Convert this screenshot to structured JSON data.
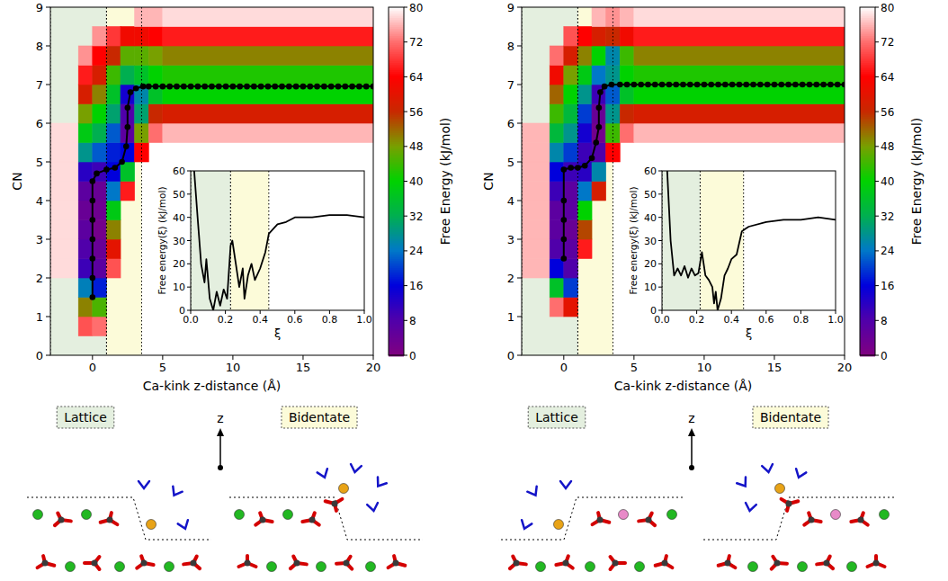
{
  "chart_data": [
    {
      "type": "heatmap",
      "xlabel": "Ca-kink z-distance (Å)",
      "ylabel": "CN",
      "xlim": [
        -3,
        20
      ],
      "xticks": [
        0,
        5,
        10,
        15,
        20
      ],
      "ylim": [
        0,
        9
      ],
      "yticks": [
        0,
        1,
        2,
        3,
        4,
        5,
        6,
        7,
        8,
        9
      ],
      "x_edges": [
        -3,
        -1,
        0,
        1,
        2,
        3,
        4,
        5,
        20
      ],
      "y_edges": [
        0,
        0.5,
        1,
        1.5,
        2,
        2.5,
        3,
        3.5,
        4,
        4.5,
        5,
        5.5,
        6,
        6.5,
        7,
        7.5,
        8,
        8.5,
        9
      ],
      "cells": [
        [
          null,
          null,
          null,
          null,
          null,
          null,
          null,
          null
        ],
        [
          null,
          70,
          72,
          null,
          null,
          null,
          null,
          null
        ],
        [
          null,
          50,
          45,
          null,
          null,
          null,
          null,
          null
        ],
        [
          null,
          25,
          18,
          null,
          null,
          null,
          null,
          null
        ],
        [
          78,
          10,
          6,
          70,
          null,
          null,
          null,
          null
        ],
        [
          78,
          8,
          4,
          60,
          null,
          null,
          null,
          null
        ],
        [
          78,
          6,
          2,
          50,
          null,
          null,
          null,
          null
        ],
        [
          78,
          4,
          3,
          38,
          null,
          null,
          null,
          null
        ],
        [
          78,
          6,
          4,
          24,
          66,
          null,
          null,
          null
        ],
        [
          78,
          12,
          10,
          16,
          36,
          null,
          null,
          null
        ],
        [
          78,
          28,
          22,
          18,
          16,
          64,
          null,
          null
        ],
        [
          78,
          38,
          32,
          22,
          6,
          48,
          72,
          76
        ],
        [
          null,
          48,
          40,
          30,
          8,
          30,
          56,
          58
        ],
        [
          null,
          58,
          50,
          36,
          14,
          26,
          36,
          40
        ],
        [
          null,
          66,
          58,
          44,
          32,
          36,
          40,
          42
        ],
        [
          null,
          74,
          64,
          56,
          46,
          46,
          48,
          50
        ],
        [
          null,
          null,
          74,
          68,
          62,
          62,
          64,
          66
        ],
        [
          null,
          null,
          null,
          null,
          null,
          76,
          76,
          78
        ]
      ],
      "colorbar": {
        "label": "Free Energy (kJ/mol)",
        "range": [
          0,
          80
        ],
        "ticks": [
          0,
          8,
          16,
          24,
          32,
          40,
          48,
          56,
          64,
          72,
          80
        ]
      },
      "regions": [
        {
          "label": "Lattice",
          "range": [
            -3,
            1
          ],
          "color": "#e4efdf"
        },
        {
          "label": "Bidentate",
          "range": [
            1,
            3.5
          ],
          "color": "#fcfbd9"
        }
      ],
      "path": {
        "x": [
          0,
          0,
          0,
          0,
          0,
          0,
          0,
          0.3,
          1,
          1.6,
          2.1,
          2.4,
          2.5,
          2.5,
          2.7,
          3.1,
          3.6,
          4,
          4.5,
          5,
          5.5,
          6,
          6.5,
          7,
          7.5,
          8,
          8.5,
          9,
          9.5,
          10,
          10.5,
          11,
          11.5,
          12,
          12.5,
          13,
          13.5,
          14,
          14.5,
          15,
          15.5,
          16,
          16.5,
          17,
          17.5,
          18,
          18.5,
          19,
          19.5,
          20
        ],
        "y": [
          1.5,
          2,
          2.5,
          3,
          3.5,
          4,
          4.5,
          4.7,
          4.8,
          4.85,
          5,
          5.4,
          5.9,
          6.4,
          6.8,
          6.9,
          6.95,
          6.95,
          6.95,
          6.95,
          6.95,
          6.95,
          6.95,
          6.95,
          6.95,
          6.95,
          6.95,
          6.95,
          6.95,
          6.95,
          6.95,
          6.95,
          6.95,
          6.95,
          6.95,
          6.95,
          6.95,
          6.95,
          6.95,
          6.95,
          6.95,
          6.95,
          6.95,
          6.95,
          6.95,
          6.95,
          6.95,
          6.95,
          6.95,
          6.95
        ]
      },
      "inset": {
        "type": "line",
        "xlabel": "ξ",
        "ylabel": "Free energy(ξ) (kJ/mol)",
        "xlim": [
          0,
          1
        ],
        "ylim": [
          0,
          60
        ],
        "xticks": [
          {
            "value": 0,
            "label": "0.0"
          },
          {
            "value": 0.2,
            "label": "0.2"
          },
          {
            "value": 0.4,
            "label": "0.4"
          },
          {
            "value": 0.6,
            "label": "0.6"
          },
          {
            "value": 0.8,
            "label": "0.8"
          },
          {
            "value": 1,
            "label": "1.0"
          }
        ],
        "yticks": [
          0,
          10,
          20,
          30,
          40,
          50,
          60
        ],
        "regions": [
          {
            "range": [
              0,
              0.23
            ],
            "color": "#e4efdf"
          },
          {
            "range": [
              0.23,
              0.45
            ],
            "color": "#fcfbd9"
          }
        ],
        "x": [
          0.02,
          0.04,
          0.06,
          0.08,
          0.09,
          0.11,
          0.13,
          0.15,
          0.17,
          0.19,
          0.21,
          0.23,
          0.24,
          0.26,
          0.28,
          0.3,
          0.31,
          0.33,
          0.35,
          0.37,
          0.4,
          0.43,
          0.45,
          0.5,
          0.55,
          0.6,
          0.7,
          0.8,
          0.9,
          1.0
        ],
        "y": [
          60,
          40,
          20,
          12,
          22,
          5,
          0,
          8,
          2,
          9,
          5,
          28,
          30,
          20,
          10,
          18,
          5,
          15,
          20,
          13,
          18,
          25,
          33,
          37,
          38,
          40,
          40,
          41,
          41,
          40
        ]
      },
      "schematic": {
        "arrow_label": "z"
      }
    },
    {
      "type": "heatmap",
      "xlabel": "Ca-kink z-distance (Å)",
      "ylabel": "CN",
      "xlim": [
        -3,
        20
      ],
      "xticks": [
        0,
        5,
        10,
        15,
        20
      ],
      "ylim": [
        0,
        9
      ],
      "yticks": [
        0,
        1,
        2,
        3,
        4,
        5,
        6,
        7,
        8,
        9
      ],
      "x_edges": [
        -3,
        -1,
        0,
        1,
        2,
        3,
        4,
        5,
        20
      ],
      "y_edges": [
        0,
        0.5,
        1,
        1.5,
        2,
        2.5,
        3,
        3.5,
        4,
        4.5,
        5,
        5.5,
        6,
        6.5,
        7,
        7.5,
        8,
        8.5,
        9
      ],
      "cells": [
        [
          null,
          null,
          null,
          null,
          null,
          null,
          null,
          null
        ],
        [
          null,
          null,
          null,
          null,
          null,
          null,
          null,
          null
        ],
        [
          null,
          72,
          60,
          null,
          null,
          null,
          null,
          null
        ],
        [
          null,
          36,
          20,
          null,
          null,
          null,
          null,
          null
        ],
        [
          76,
          16,
          8,
          null,
          null,
          null,
          null,
          null
        ],
        [
          76,
          8,
          6,
          66,
          null,
          null,
          null,
          null
        ],
        [
          76,
          6,
          4,
          54,
          null,
          null,
          null,
          null
        ],
        [
          76,
          6,
          6,
          40,
          null,
          null,
          null,
          null
        ],
        [
          76,
          10,
          6,
          24,
          58,
          null,
          null,
          null
        ],
        [
          76,
          16,
          10,
          12,
          26,
          null,
          null,
          null
        ],
        [
          76,
          26,
          20,
          10,
          8,
          64,
          null,
          null
        ],
        [
          76,
          34,
          28,
          14,
          2,
          44,
          72,
          76
        ],
        [
          null,
          44,
          34,
          20,
          4,
          28,
          56,
          58
        ],
        [
          null,
          52,
          40,
          28,
          10,
          22,
          36,
          40
        ],
        [
          null,
          62,
          48,
          38,
          24,
          28,
          40,
          42
        ],
        [
          null,
          72,
          58,
          50,
          40,
          26,
          44,
          50
        ],
        [
          null,
          null,
          70,
          64,
          58,
          56,
          62,
          66
        ],
        [
          null,
          null,
          null,
          null,
          76,
          74,
          76,
          78
        ]
      ],
      "colorbar": {
        "label": "Free Energy (kJ/mol)",
        "range": [
          0,
          80
        ],
        "ticks": [
          0,
          8,
          16,
          24,
          32,
          40,
          48,
          56,
          64,
          72,
          80
        ]
      },
      "regions": [
        {
          "label": "Lattice",
          "range": [
            -3,
            1
          ],
          "color": "#e4efdf"
        },
        {
          "label": "Bidentate",
          "range": [
            1,
            3.5
          ],
          "color": "#fcfbd9"
        }
      ],
      "path": {
        "x": [
          0,
          0,
          0,
          0,
          0,
          0.5,
          1,
          1.5,
          2,
          2.3,
          2.5,
          2.5,
          2.6,
          2.9,
          3.4,
          4,
          4.5,
          5,
          5.5,
          6,
          6.5,
          7,
          7.5,
          8,
          8.5,
          9,
          9.5,
          10,
          10.5,
          11,
          11.5,
          12,
          12.5,
          13,
          13.5,
          14,
          14.5,
          15,
          15.5,
          16,
          16.5,
          17,
          17.5,
          18,
          18.5,
          19,
          19.5,
          20
        ],
        "y": [
          2.5,
          3,
          3.5,
          4,
          4.8,
          4.85,
          4.85,
          4.9,
          5.1,
          5.5,
          5.9,
          6.4,
          6.8,
          6.95,
          7,
          7,
          7,
          7,
          7,
          7,
          7,
          7,
          7,
          7,
          7,
          7,
          7,
          7,
          7,
          7,
          7,
          7,
          7,
          7,
          7,
          7,
          7,
          7,
          7,
          7,
          7,
          7,
          7,
          7,
          7,
          7,
          7,
          7
        ]
      },
      "inset": {
        "type": "line",
        "xlabel": "ξ",
        "ylabel": "Free energy(ξ) (kJ/mol)",
        "xlim": [
          0,
          1
        ],
        "ylim": [
          0,
          60
        ],
        "xticks": [
          {
            "value": 0,
            "label": "0.0"
          },
          {
            "value": 0.2,
            "label": "0.2"
          },
          {
            "value": 0.4,
            "label": "0.4"
          },
          {
            "value": 0.6,
            "label": "0.6"
          },
          {
            "value": 0.8,
            "label": "0.8"
          },
          {
            "value": 1,
            "label": "1.0"
          }
        ],
        "yticks": [
          0,
          10,
          20,
          30,
          40,
          50,
          60
        ],
        "regions": [
          {
            "range": [
              0,
              0.22
            ],
            "color": "#e4efdf"
          },
          {
            "range": [
              0.22,
              0.47
            ],
            "color": "#fcfbd9"
          }
        ],
        "x": [
          0.03,
          0.05,
          0.07,
          0.09,
          0.11,
          0.13,
          0.15,
          0.17,
          0.19,
          0.21,
          0.23,
          0.25,
          0.27,
          0.29,
          0.3,
          0.31,
          0.32,
          0.34,
          0.36,
          0.38,
          0.4,
          0.43,
          0.46,
          0.48,
          0.5,
          0.6,
          0.7,
          0.8,
          0.9,
          1.0
        ],
        "y": [
          60,
          30,
          15,
          18,
          15,
          19,
          14,
          18,
          15,
          16,
          25,
          15,
          13,
          10,
          3,
          8,
          0,
          5,
          15,
          18,
          22,
          24,
          34,
          35,
          36,
          38,
          39,
          39,
          40,
          39
        ]
      },
      "schematic": {
        "arrow_label": "z"
      }
    }
  ]
}
